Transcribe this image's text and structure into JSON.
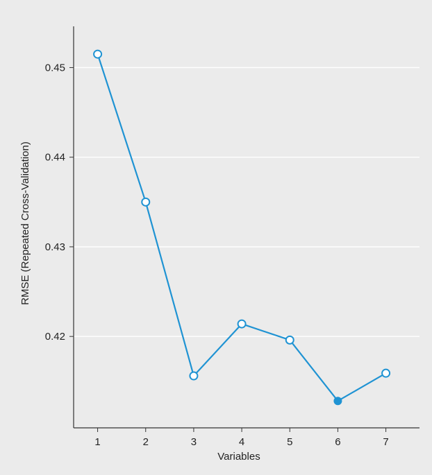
{
  "chart_data": {
    "type": "line",
    "title": "",
    "xlabel": "Variables",
    "ylabel": "RMSE (Repeated Cross-Validation)",
    "x": [
      1,
      2,
      3,
      4,
      5,
      6,
      7
    ],
    "series": [
      {
        "values": [
          0.4515,
          0.435,
          0.4156,
          0.4214,
          0.4196,
          0.4128,
          0.4159
        ]
      }
    ],
    "selected_index": 5,
    "xlim": [
      0.5,
      7.7
    ],
    "ylim": [
      0.4098,
      0.4546
    ],
    "xticks": [
      "1",
      "2",
      "3",
      "4",
      "5",
      "6",
      "7"
    ],
    "yticks": [
      "0.42",
      "0.43",
      "0.44",
      "0.45"
    ],
    "grid": "horizontal",
    "legend": "none",
    "colors": {
      "line": "#1f93d3",
      "background": "#ebebeb",
      "grid": "#ffffff",
      "axis": "#333333",
      "marker_fill": "#ffffff"
    }
  }
}
